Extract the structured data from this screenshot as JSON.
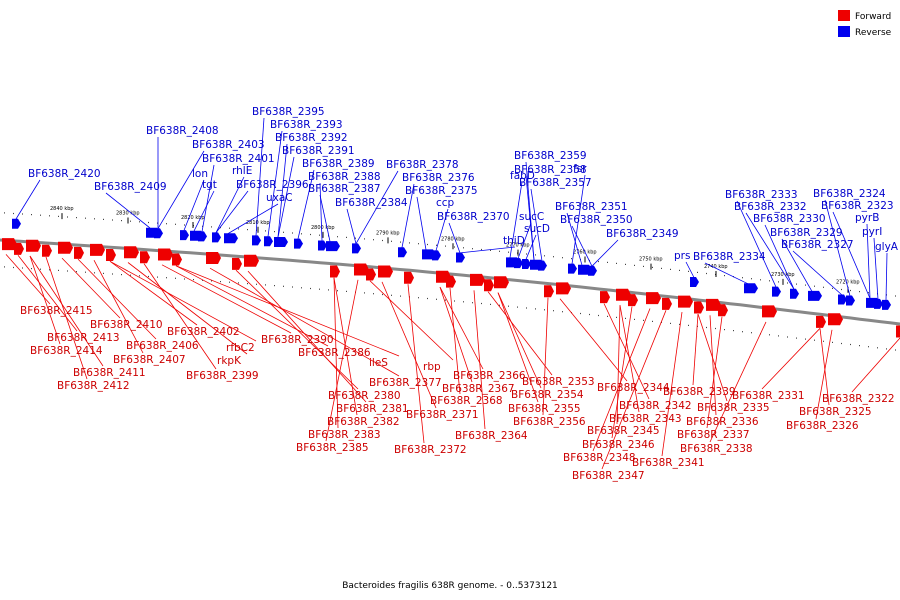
{
  "caption": "Bacteroides fragilis 638R genome. - 0..5373121",
  "legend": [
    {
      "label": "Forward",
      "color": "#ee0000"
    },
    {
      "label": "Reverse",
      "color": "#0000ee"
    }
  ],
  "colors": {
    "forward": "#ee0000",
    "reverse": "#0000ee",
    "forward_label": "#cc0000",
    "reverse_label": "#0000cc",
    "backbone": "#888888"
  },
  "ticks": [
    "2840 kbp",
    "2830 kbp",
    "2820 kbp",
    "2810 kbp",
    "2800 kbp",
    "2790 kbp",
    "2780 kbp",
    "2770 kbp",
    "2760 kbp",
    "2750 kbp",
    "2740 kbp",
    "2730 kbp",
    "2720 kbp"
  ],
  "reverse_labels": [
    "BF638R_2420",
    "BF638R_2409",
    "BF638R_2408",
    "BF638R_2403",
    "lon",
    "tgt",
    "BF638R_2401",
    "rhlE",
    "BF638R_2396",
    "uxaC",
    "BF638R_2395",
    "BF638R_2393",
    "BF638R_2392",
    "BF638R_2391",
    "BF638R_2389",
    "BF638R_2388",
    "BF638R_2387",
    "BF638R_2384",
    "BF638R_2378",
    "BF638R_2376",
    "BF638R_2375",
    "ccp",
    "BF638R_2370",
    "thiD",
    "fabD",
    "sucC",
    "sucD",
    "BF638R_2359",
    "BF638R_2358",
    "BF638R_2357",
    "fsr",
    "BF638R_2351",
    "BF638R_2350",
    "BF638R_2349",
    "prs",
    "BF638R_2334",
    "BF638R_2333",
    "BF638R_2332",
    "BF638R_2330",
    "BF638R_2329",
    "BF638R_2327",
    "BF638R_2324",
    "BF638R_2323",
    "pyrB",
    "pyrI",
    "glyA"
  ],
  "forward_labels": [
    "BF638R_2415",
    "BF638R_2413",
    "BF638R_2414",
    "BF638R_2411",
    "BF638R_2412",
    "BF638R_2410",
    "BF638R_2406",
    "BF638R_2407",
    "BF638R_2402",
    "rfbC2",
    "rkpK",
    "BF638R_2399",
    "BF638R_2390",
    "BF638R_2386",
    "ileS",
    "BF638R_2377",
    "BF638R_2380",
    "BF638R_2381",
    "BF638R_2382",
    "BF638R_2383",
    "BF638R_2385",
    "rbp",
    "BF638R_2371",
    "BF638R_2372",
    "BF638R_2366",
    "BF638R_2367",
    "BF638R_2368",
    "BF638R_2364",
    "BF638R_2353",
    "BF638R_2354",
    "BF638R_2355",
    "BF638R_2356",
    "BF638R_2344",
    "BF638R_2342",
    "BF638R_2343",
    "BF638R_2345",
    "BF638R_2346",
    "BF638R_2348",
    "BF638R_2347",
    "BF638R_2341",
    "BF638R_2339",
    "BF638R_2335",
    "BF638R_2336",
    "BF638R_2337",
    "BF638R_2338",
    "BF638R_2331",
    "BF638R_2325",
    "BF638R_2326",
    "BF638R_2322"
  ]
}
